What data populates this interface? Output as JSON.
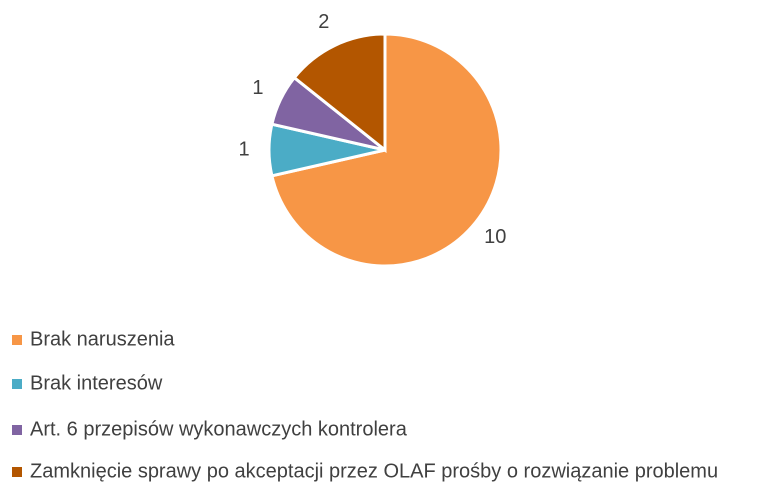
{
  "chart_data": {
    "type": "pie",
    "categories": [
      "Brak naruszenia",
      "Brak interesów",
      "Art. 6 przepisów wykonawczych kontrolera",
      "Zamknięcie sprawy po akceptacji przez OLAF prośby o rozwiązanie problemu"
    ],
    "values": [
      10,
      1,
      1,
      2
    ],
    "colors": [
      "#f79646",
      "#4bacc6",
      "#8064a2",
      "#b35600"
    ],
    "legend": "bottom"
  }
}
